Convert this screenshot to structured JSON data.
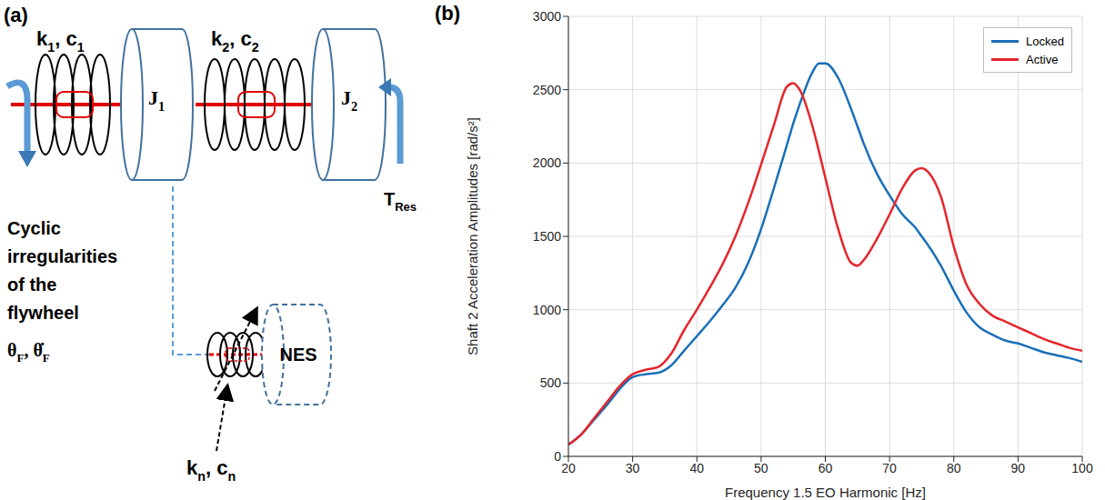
{
  "diagram": {
    "panel": "(a)",
    "spring_1": [
      "k",
      [
        "1"
      ],
      ", c",
      [
        "1"
      ]
    ],
    "inertia_1": [
      "J",
      [
        "1"
      ]
    ],
    "spring_2": [
      "k",
      [
        "2"
      ],
      ", c",
      [
        "2"
      ]
    ],
    "inertia_2": [
      "J",
      [
        "2"
      ]
    ],
    "torque": [
      "T",
      [
        "Res"
      ]
    ],
    "excitation": [
      "Cyclic",
      "irregularities",
      "of the",
      "flywheel"
    ],
    "state": [
      "θ",
      [
        "F"
      ],
      ", θ̇",
      [
        "F"
      ]
    ],
    "nes_spring": [
      "k",
      [
        "n"
      ],
      ", c",
      [
        "n"
      ]
    ],
    "nes": "NES"
  },
  "chart_data": {
    "panel": "(b)",
    "type": "line",
    "x_label": "Frequency 1.5 EO Harmonic [Hz]",
    "y_label": "Shaft 2 Acceleration Amplitudes [rad/s²]",
    "x": [
      20,
      22,
      24,
      26,
      28,
      30,
      32,
      34,
      36,
      38,
      40,
      42,
      44,
      46,
      48,
      50,
      52,
      54,
      55,
      56,
      58,
      59,
      60,
      62,
      64,
      65,
      66,
      68,
      70,
      72,
      74,
      75,
      76,
      78,
      80,
      82,
      84,
      86,
      88,
      90,
      92,
      94,
      96,
      98,
      100
    ],
    "series": [
      {
        "name": "Locked",
        "color": "#1a6fb7",
        "values": [
          80,
          150,
          250,
          350,
          460,
          540,
          560,
          570,
          620,
          720,
          820,
          920,
          1030,
          1150,
          1320,
          1550,
          1830,
          2120,
          2270,
          2400,
          2620,
          2680,
          2680,
          2580,
          2370,
          2250,
          2130,
          1930,
          1780,
          1650,
          1560,
          1500,
          1440,
          1300,
          1130,
          980,
          880,
          830,
          790,
          770,
          740,
          710,
          690,
          670,
          645
        ]
      },
      {
        "name": "Active",
        "color": "#e3262b",
        "values": [
          80,
          150,
          260,
          370,
          480,
          560,
          590,
          610,
          700,
          860,
          1000,
          1150,
          1310,
          1500,
          1730,
          1990,
          2260,
          2520,
          2545,
          2500,
          2250,
          2080,
          1900,
          1550,
          1320,
          1300,
          1340,
          1480,
          1650,
          1830,
          1950,
          1965,
          1940,
          1770,
          1430,
          1170,
          1040,
          960,
          920,
          880,
          840,
          800,
          770,
          740,
          720
        ]
      }
    ],
    "xlim": [
      20,
      100
    ],
    "xticks": [
      20,
      30,
      40,
      50,
      60,
      70,
      80,
      90,
      100
    ],
    "ylim": [
      0,
      3000
    ],
    "yticks": [
      0,
      500,
      1000,
      1500,
      2000,
      2500,
      3000
    ],
    "grid": true,
    "legend": "upper right"
  }
}
